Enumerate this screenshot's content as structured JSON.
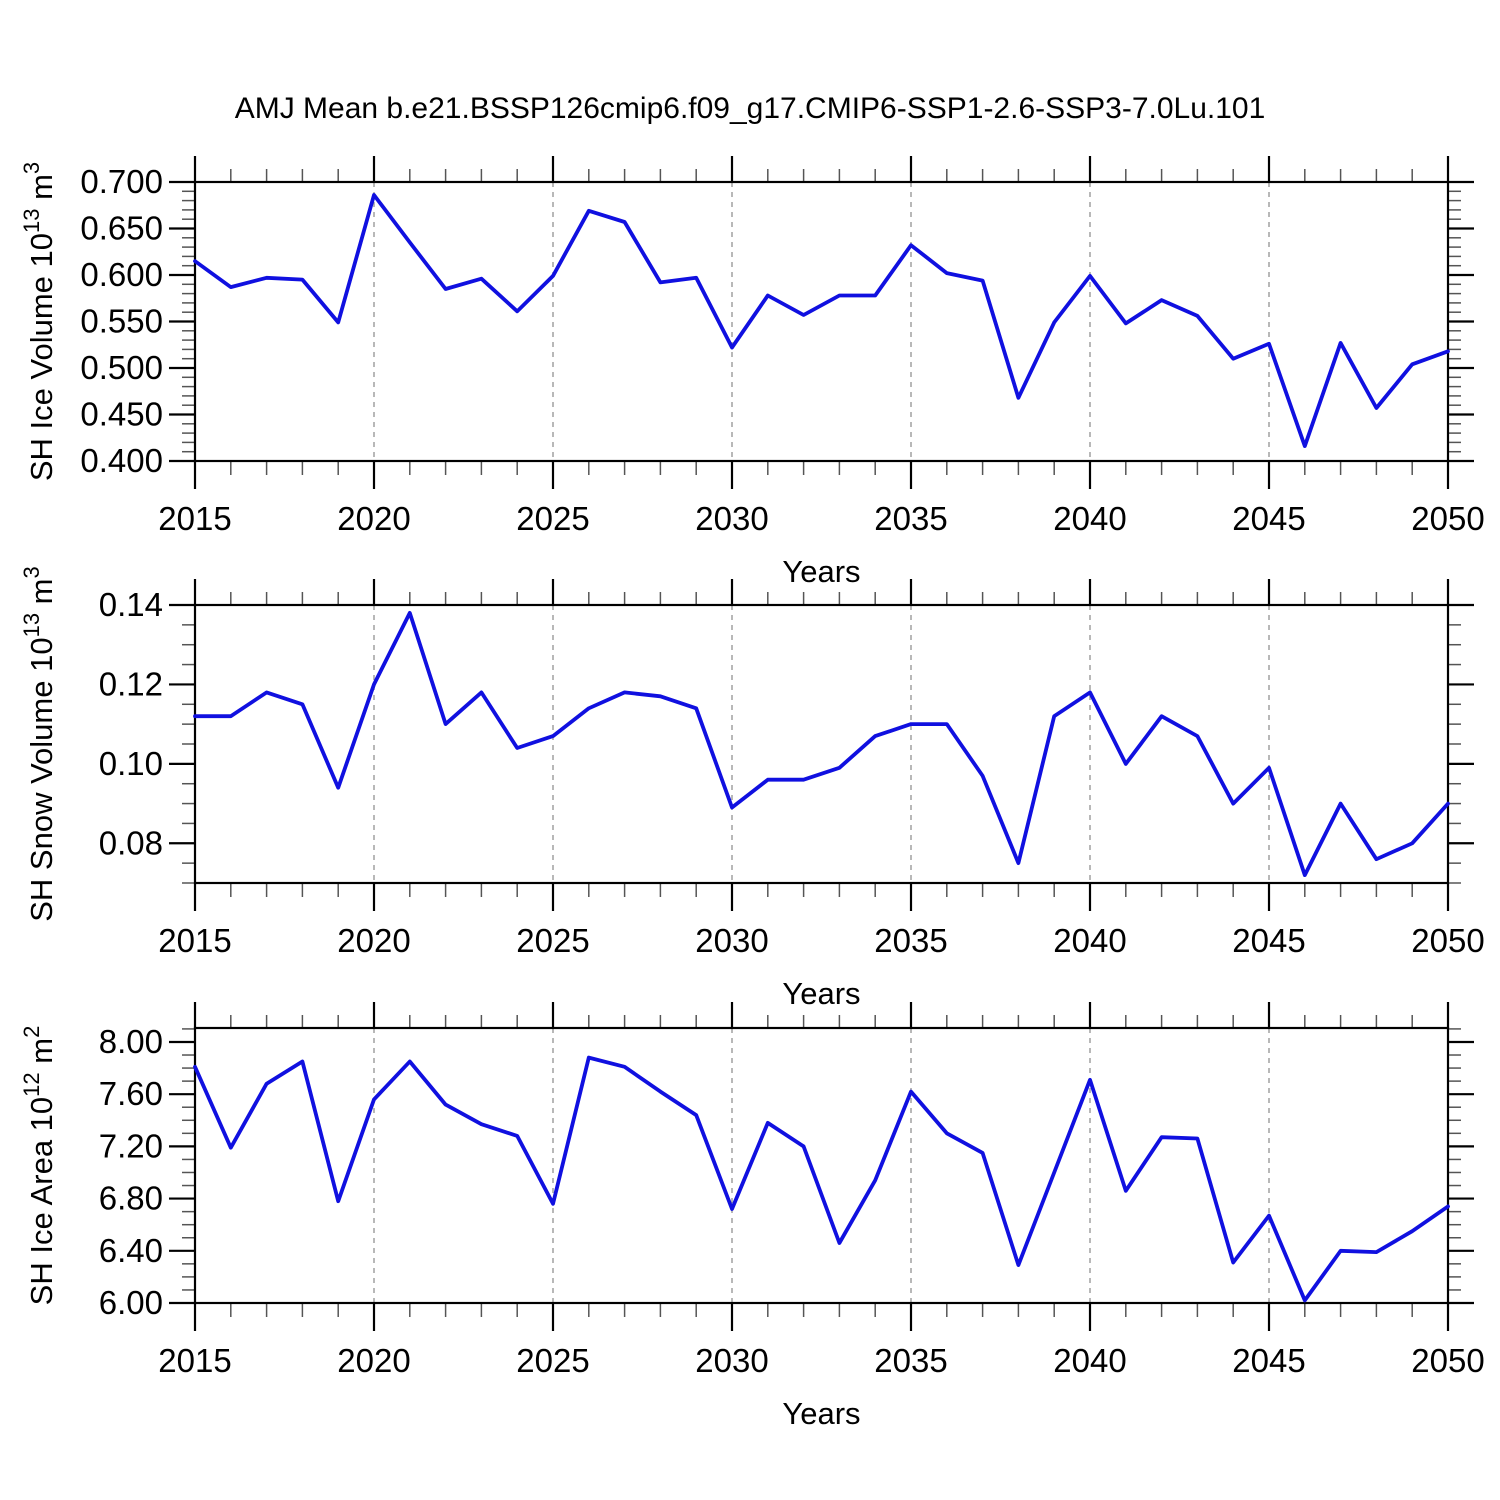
{
  "title": "AMJ Mean b.e21.BSSP126cmip6.f09_g17.CMIP6-SSP1-2.6-SSP3-7.0Lu.101",
  "colors": {
    "line": "#1010e0",
    "grid": "#999999",
    "axis": "#000000",
    "minor_tick": "#555555"
  },
  "chart_data": [
    {
      "type": "line",
      "id": "ice-volume",
      "ylabel": "SH Ice Volume 10^13 m^3",
      "ylabel_segments": [
        {
          "t": "SH Ice Volume 10"
        },
        {
          "t": "13",
          "sup": true
        },
        {
          "t": " m"
        },
        {
          "t": "3",
          "sup": true
        }
      ],
      "xlabel": "Years",
      "x": [
        2015,
        2016,
        2017,
        2018,
        2019,
        2020,
        2021,
        2022,
        2023,
        2024,
        2025,
        2026,
        2027,
        2028,
        2029,
        2030,
        2031,
        2032,
        2033,
        2034,
        2035,
        2036,
        2037,
        2038,
        2039,
        2040,
        2041,
        2042,
        2043,
        2044,
        2045,
        2046,
        2047,
        2048,
        2049,
        2050
      ],
      "values": [
        0.615,
        0.587,
        0.597,
        0.595,
        0.549,
        0.686,
        0.635,
        0.585,
        0.596,
        0.561,
        0.599,
        0.669,
        0.657,
        0.592,
        0.597,
        0.522,
        0.578,
        0.557,
        0.578,
        0.578,
        0.632,
        0.602,
        0.594,
        0.468,
        0.549,
        0.599,
        0.548,
        0.573,
        0.556,
        0.51,
        0.526,
        0.416,
        0.527,
        0.457,
        0.504,
        0.518
      ],
      "xlim": [
        2015,
        2050
      ],
      "ylim": [
        0.4,
        0.7
      ],
      "yticks": [
        0.4,
        0.45,
        0.5,
        0.55,
        0.6,
        0.65,
        0.7
      ],
      "ytick_labels": [
        "0.400",
        "0.450",
        "0.500",
        "0.550",
        "0.600",
        "0.650",
        "0.700"
      ],
      "ytick_minor_step": 0.01,
      "xticks": [
        2015,
        2020,
        2025,
        2030,
        2035,
        2040,
        2045,
        2050
      ],
      "xtick_labels": [
        "2015",
        "2020",
        "2025",
        "2030",
        "2035",
        "2040",
        "2045",
        "2050"
      ],
      "xtick_minor_step": 1,
      "grid_x": [
        2020,
        2025,
        2030,
        2035,
        2040,
        2045
      ],
      "grid_on": "vertical-dashed",
      "legend": "none"
    },
    {
      "type": "line",
      "id": "snow-volume",
      "ylabel": "SH Snow Volume 10^13 m^3",
      "ylabel_segments": [
        {
          "t": "SH Snow Volume 10"
        },
        {
          "t": "13",
          "sup": true
        },
        {
          "t": " m"
        },
        {
          "t": "3",
          "sup": true
        }
      ],
      "xlabel": "Years",
      "x": [
        2015,
        2016,
        2017,
        2018,
        2019,
        2020,
        2021,
        2022,
        2023,
        2024,
        2025,
        2026,
        2027,
        2028,
        2029,
        2030,
        2031,
        2032,
        2033,
        2034,
        2035,
        2036,
        2037,
        2038,
        2039,
        2040,
        2041,
        2042,
        2043,
        2044,
        2045,
        2046,
        2047,
        2048,
        2049,
        2050
      ],
      "values": [
        0.112,
        0.112,
        0.118,
        0.115,
        0.094,
        0.12,
        0.138,
        0.11,
        0.118,
        0.104,
        0.107,
        0.114,
        0.118,
        0.117,
        0.114,
        0.089,
        0.096,
        0.096,
        0.099,
        0.107,
        0.11,
        0.11,
        0.097,
        0.075,
        0.112,
        0.118,
        0.1,
        0.112,
        0.107,
        0.09,
        0.099,
        0.072,
        0.09,
        0.076,
        0.08,
        0.09
      ],
      "xlim": [
        2015,
        2050
      ],
      "ylim": [
        0.07,
        0.14
      ],
      "yticks": [
        0.08,
        0.1,
        0.12,
        0.14
      ],
      "ytick_labels": [
        "0.08",
        "0.10",
        "0.12",
        "0.14"
      ],
      "ytick_minor_step": 0.005,
      "xticks": [
        2015,
        2020,
        2025,
        2030,
        2035,
        2040,
        2045,
        2050
      ],
      "xtick_labels": [
        "2015",
        "2020",
        "2025",
        "2030",
        "2035",
        "2040",
        "2045",
        "2050"
      ],
      "xtick_minor_step": 1,
      "grid_x": [
        2020,
        2025,
        2030,
        2035,
        2040,
        2045
      ],
      "grid_on": "vertical-dashed",
      "legend": "none"
    },
    {
      "type": "line",
      "id": "ice-area",
      "ylabel": "SH Ice Area 10^12 m^2",
      "ylabel_segments": [
        {
          "t": "SH Ice Area 10"
        },
        {
          "t": "12",
          "sup": true
        },
        {
          "t": " m"
        },
        {
          "t": "2",
          "sup": true
        }
      ],
      "xlabel": "Years",
      "x": [
        2015,
        2016,
        2017,
        2018,
        2019,
        2020,
        2021,
        2022,
        2023,
        2024,
        2025,
        2026,
        2027,
        2028,
        2029,
        2030,
        2031,
        2032,
        2033,
        2034,
        2035,
        2036,
        2037,
        2038,
        2039,
        2040,
        2041,
        2042,
        2043,
        2044,
        2045,
        2046,
        2047,
        2048,
        2049,
        2050
      ],
      "values": [
        7.81,
        7.19,
        7.68,
        7.85,
        6.78,
        7.56,
        7.85,
        7.52,
        7.37,
        7.28,
        6.76,
        7.88,
        7.81,
        7.62,
        7.44,
        6.72,
        7.38,
        7.2,
        6.46,
        6.94,
        7.62,
        7.3,
        7.15,
        6.29,
        7.0,
        7.71,
        6.86,
        7.27,
        7.26,
        6.31,
        6.67,
        6.02,
        6.4,
        6.39,
        6.55,
        6.74
      ],
      "xlim": [
        2015,
        2050
      ],
      "ylim": [
        6.0,
        8.107
      ],
      "yticks": [
        6.0,
        6.4,
        6.8,
        7.2,
        7.6,
        8.0
      ],
      "ytick_labels": [
        "6.00",
        "6.40",
        "6.80",
        "7.20",
        "7.60",
        "8.00"
      ],
      "ytick_minor_step": 0.1,
      "xticks": [
        2015,
        2020,
        2025,
        2030,
        2035,
        2040,
        2045,
        2050
      ],
      "xtick_labels": [
        "2015",
        "2020",
        "2025",
        "2030",
        "2035",
        "2040",
        "2045",
        "2050"
      ],
      "xtick_minor_step": 1,
      "grid_x": [
        2020,
        2025,
        2030,
        2035,
        2040,
        2045
      ],
      "grid_on": "vertical-dashed",
      "legend": "none"
    }
  ]
}
